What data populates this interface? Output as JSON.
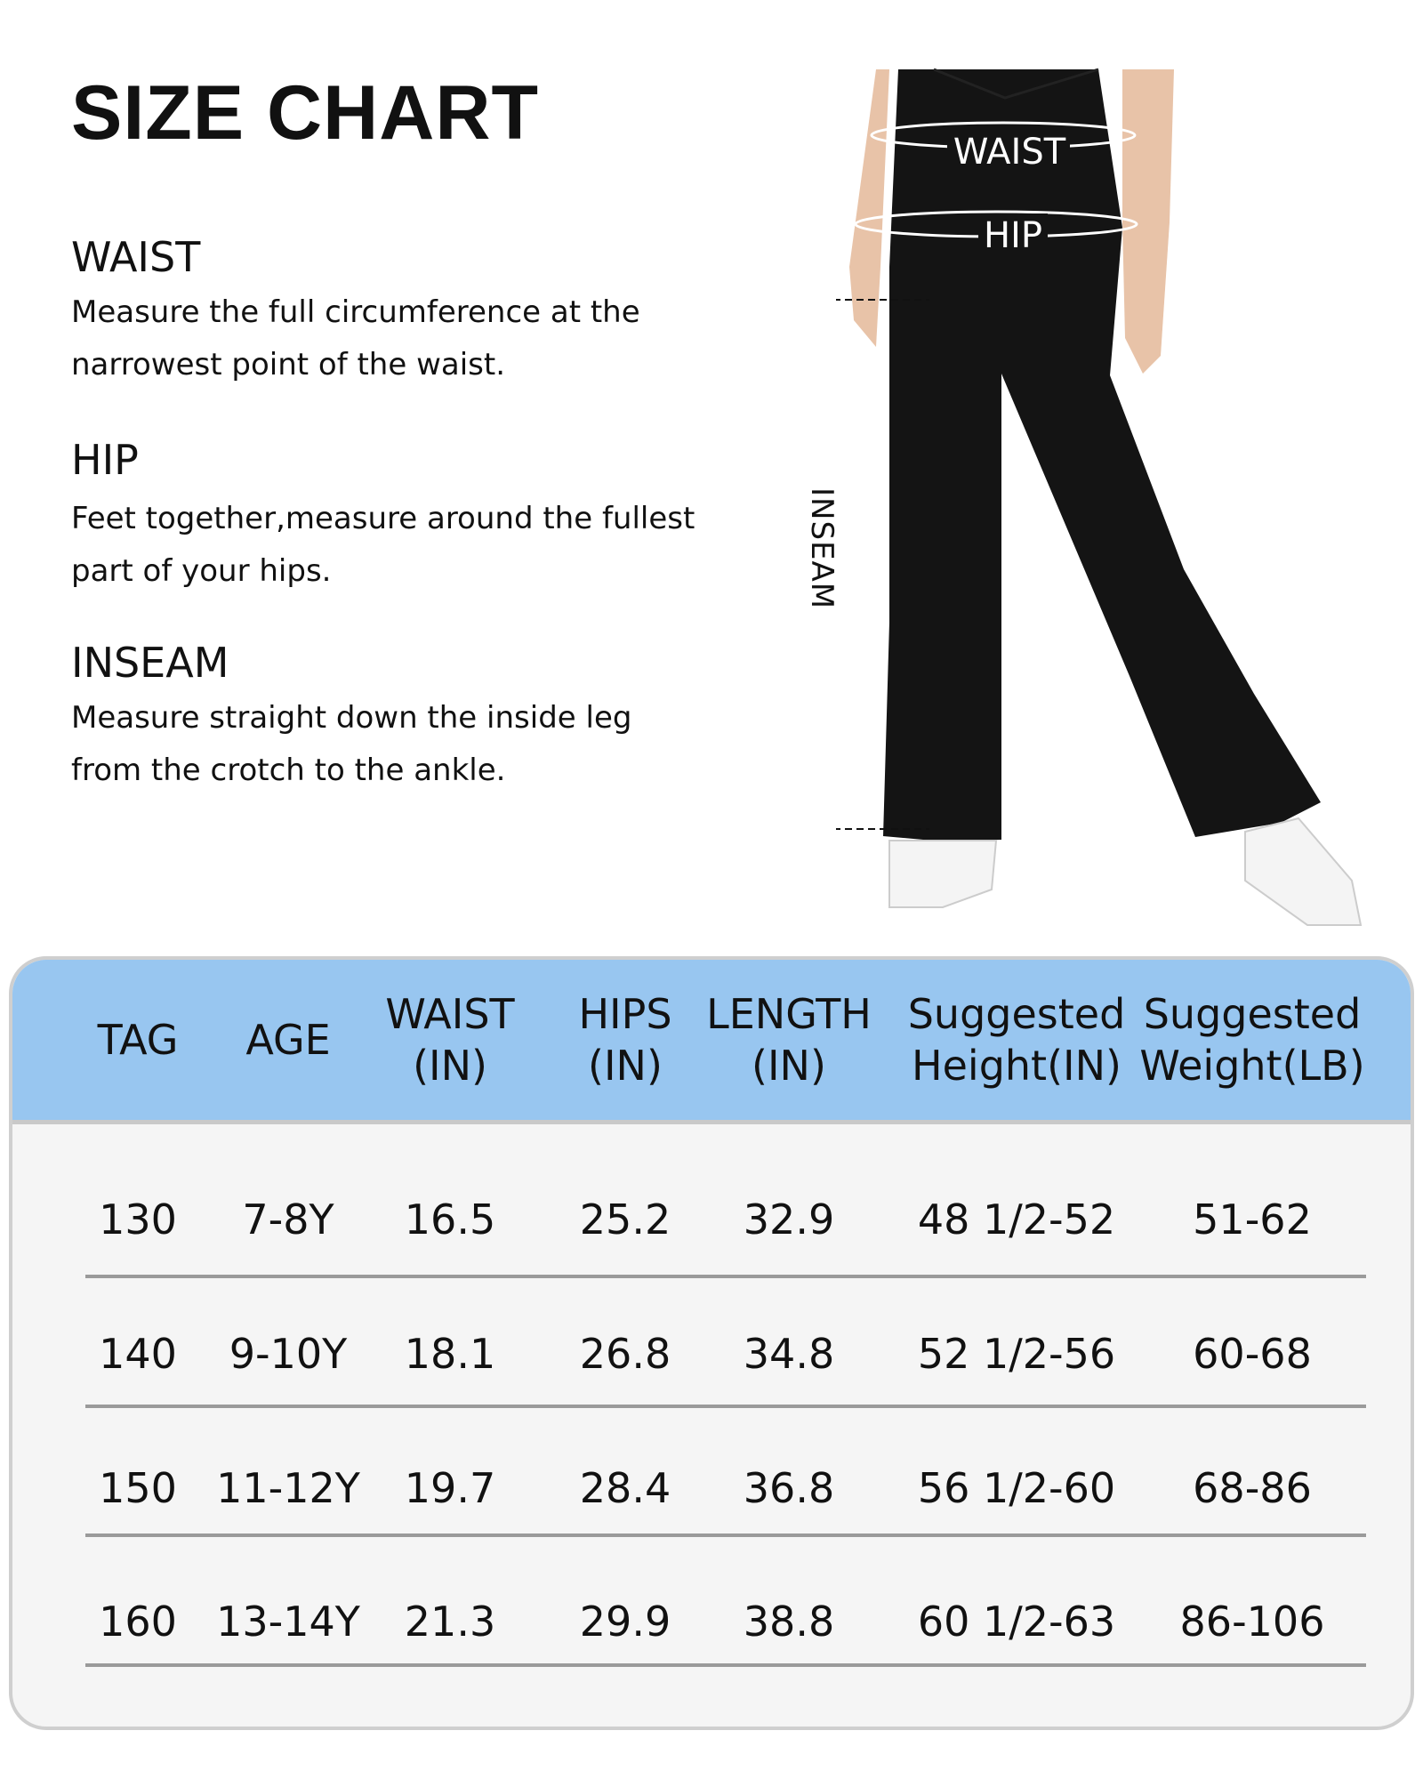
{
  "title": "SIZE CHART",
  "measurements": [
    {
      "heading": "WAIST",
      "lines": [
        "Measure the full circumference at the",
        "narrowest point of the waist."
      ]
    },
    {
      "heading": "HIP",
      "lines": [
        "Feet together,measure around the fullest",
        "part of your hips."
      ]
    },
    {
      "heading": "INSEAM",
      "lines": [
        "Measure straight down the inside leg",
        "from the crotch to the ankle."
      ]
    }
  ],
  "figure": {
    "waist_label": "WAIST",
    "hip_label": "HIP",
    "inseam_label": "INSEAM"
  },
  "colors": {
    "header_bg": "#98c6f0",
    "body_bg": "#f5f5f5",
    "divider": "#9a9a9a"
  },
  "table": {
    "headers": [
      "TAG",
      "AGE",
      "WAIST\n(IN)",
      "HIPS\n(IN)",
      "LENGTH\n(IN)",
      "Suggested\nHeight(IN)",
      "Suggested\nWeight(LB)"
    ],
    "rows": [
      [
        "130",
        "7-8Y",
        "16.5",
        "25.2",
        "32.9",
        "48 1/2-52",
        "51-62"
      ],
      [
        "140",
        "9-10Y",
        "18.1",
        "26.8",
        "34.8",
        "52 1/2-56",
        "60-68"
      ],
      [
        "150",
        "11-12Y",
        "19.7",
        "28.4",
        "36.8",
        "56 1/2-60",
        "68-86"
      ],
      [
        "160",
        "13-14Y",
        "21.3",
        "29.9",
        "38.8",
        "60 1/2-63",
        "86-106"
      ]
    ]
  }
}
